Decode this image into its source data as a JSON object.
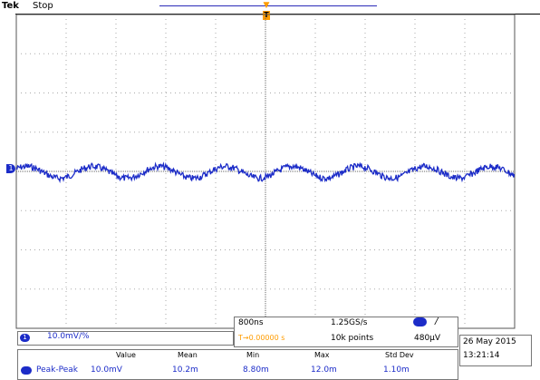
{
  "header": {
    "brand": "Tek",
    "acquisition_state": "Stop",
    "trigger_position_marker": "T"
  },
  "channel": {
    "marker": "1",
    "indicator": "1",
    "scale": "10.0mV/%",
    "color": "#1c2cc8"
  },
  "timebase": {
    "scale": "800ns",
    "sample_rate": "1.25GS/s",
    "delay": "T→0.00000 s",
    "record_length": "10k points",
    "trigger_slope": "/",
    "trigger_level": "480µV",
    "delay_color": "#ff9c00"
  },
  "datetime": {
    "date": "26 May 2015",
    "time": "13:21:14"
  },
  "measurements": {
    "headers": [
      "Value",
      "Mean",
      "Min",
      "Max",
      "Std Dev"
    ],
    "rows": [
      {
        "name": "Peak-Peak",
        "value": "10.0mV",
        "mean": "10.2m",
        "min": "8.80m",
        "max": "12.0m",
        "std_dev": "1.10m"
      }
    ]
  }
}
